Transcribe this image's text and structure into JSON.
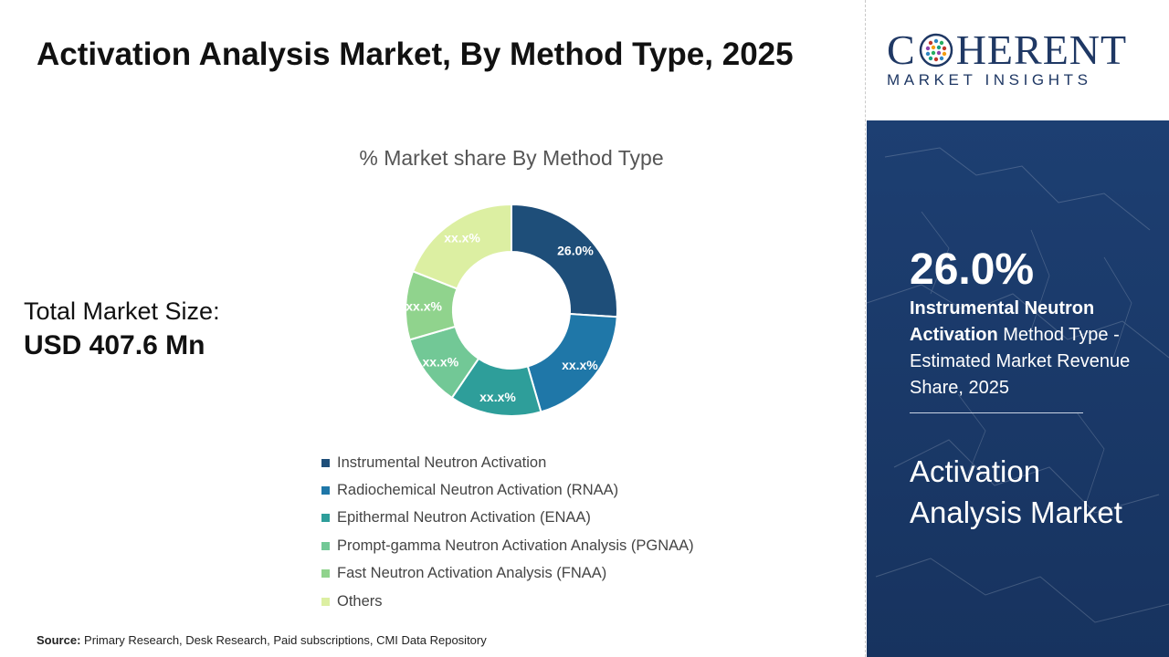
{
  "title": "Activation Analysis Market, By Method Type, 2025",
  "total_market_size": {
    "label": "Total Market Size:",
    "value": "USD 407.6 Mn"
  },
  "source": {
    "label": "Source:",
    "text": "Primary Research, Desk Research, Paid subscriptions, CMI Data Repository"
  },
  "brand": {
    "name_left": "C",
    "name_right": "HERENT",
    "tagline": "MARKET INSIGHTS"
  },
  "highlight": {
    "percentage": "26.0%",
    "segment_bold": "Instrumental Neutron Activation",
    "description": " Method Type - Estimated Market Revenue Share, 2025"
  },
  "market_name": "Activation Analysis Market",
  "colors": {
    "dark_blue_panel": "#1a3a6b",
    "brand_navy": "#1f3864"
  },
  "chart_data": {
    "type": "pie",
    "donut": true,
    "title": "% Market share By Method Type",
    "legend_position": "bottom",
    "categories": [
      "Instrumental Neutron Activation",
      "Radiochemical Neutron Activation (RNAA)",
      "Epithermal Neutron Activation (ENAA)",
      "Prompt-gamma Neutron Activation Analysis (PGNAA)",
      "Fast Neutron Activation Analysis (FNAA)",
      "Others"
    ],
    "values": [
      26.0,
      19.5,
      14.0,
      11.0,
      10.5,
      19.0
    ],
    "data_labels": [
      "26.0%",
      "xx.x%",
      "xx.x%",
      "xx.x%",
      "xx.x%",
      "xx.x%"
    ],
    "colors": [
      "#1e4e79",
      "#1f77a8",
      "#2e9e9a",
      "#72c896",
      "#90d38d",
      "#dcefa2"
    ]
  }
}
